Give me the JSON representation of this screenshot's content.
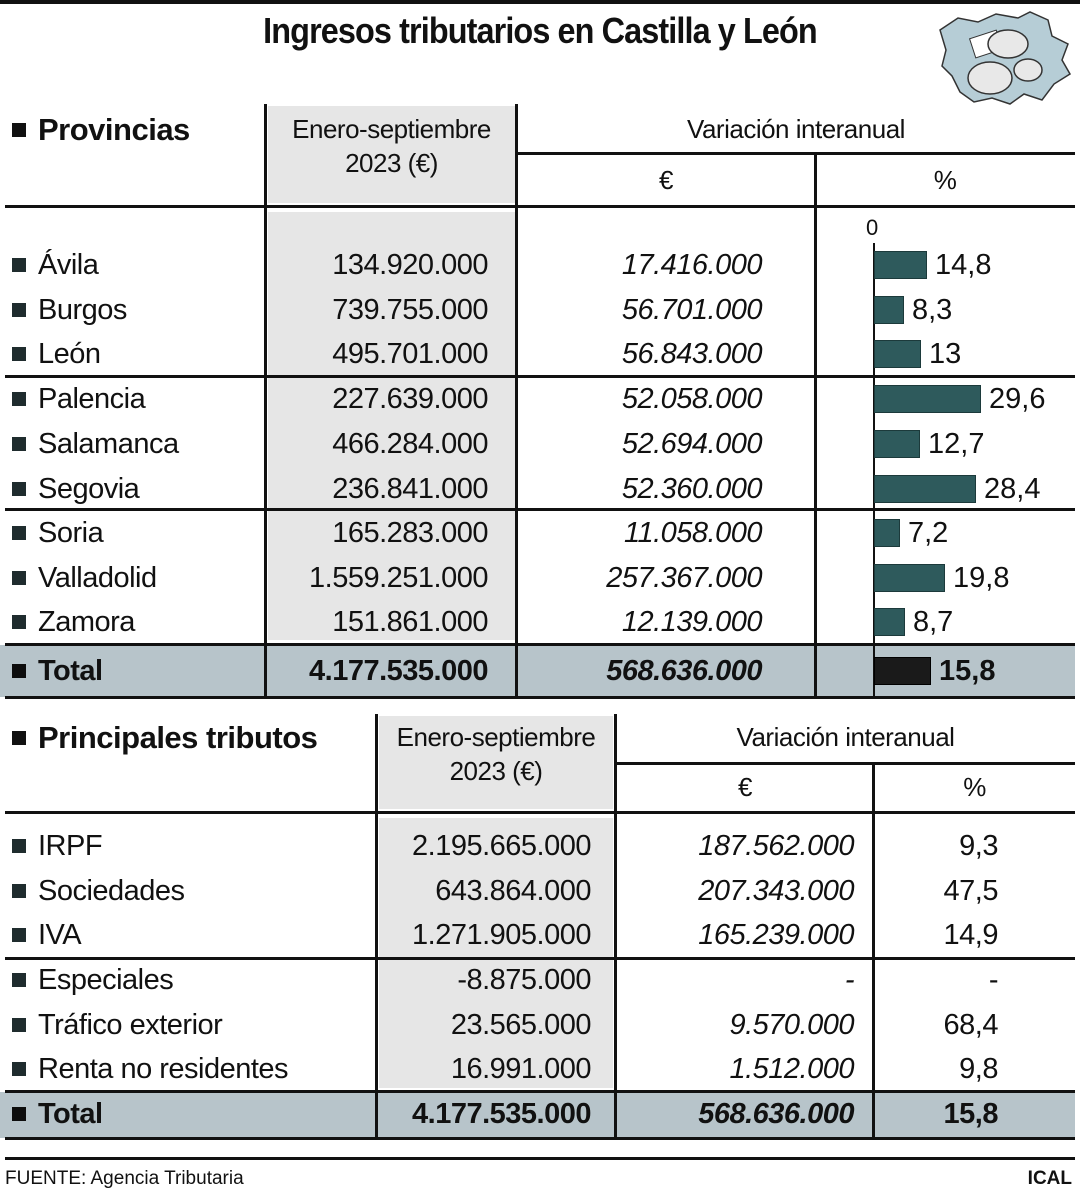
{
  "title": "Ingresos tributarios en Castilla y León",
  "icons": {
    "map": "castilla-leon-map-coins-icon",
    "bullet": "square-bullet-icon"
  },
  "colors": {
    "bar": "#2e5a5c",
    "bar_total": "#1a1a1a",
    "total_band": "#b7c4ca",
    "gray_column": "#e6e6e6"
  },
  "provincias": {
    "section_title": "Provincias",
    "col_period": "Enero-septiembre",
    "col_period_2": "2023 (€)",
    "col_variation": "Variación interanual",
    "col_eur": "€",
    "col_pct": "%",
    "axis_zero": "0",
    "rows": [
      {
        "name": "Ávila",
        "amount": "134.920.000",
        "var_eur": "17.416.000",
        "var_pct": "14,8"
      },
      {
        "name": "Burgos",
        "amount": "739.755.000",
        "var_eur": "56.701.000",
        "var_pct": "8,3"
      },
      {
        "name": "León",
        "amount": "495.701.000",
        "var_eur": "56.843.000",
        "var_pct": "13"
      },
      {
        "name": "Palencia",
        "amount": "227.639.000",
        "var_eur": "52.058.000",
        "var_pct": "29,6"
      },
      {
        "name": "Salamanca",
        "amount": "466.284.000",
        "var_eur": "52.694.000",
        "var_pct": "12,7"
      },
      {
        "name": "Segovia",
        "amount": "236.841.000",
        "var_eur": "52.360.000",
        "var_pct": "28,4"
      },
      {
        "name": "Soria",
        "amount": "165.283.000",
        "var_eur": "11.058.000",
        "var_pct": "7,2"
      },
      {
        "name": "Valladolid",
        "amount": "1.559.251.000",
        "var_eur": "257.367.000",
        "var_pct": "19,8"
      },
      {
        "name": "Zamora",
        "amount": "151.861.000",
        "var_eur": "12.139.000",
        "var_pct": "8,7"
      }
    ],
    "total": {
      "name": "Total",
      "amount": "4.177.535.000",
      "var_eur": "568.636.000",
      "var_pct": "15,8"
    }
  },
  "tributos": {
    "section_title": "Principales tributos",
    "col_period": "Enero-septiembre",
    "col_period_2": "2023 (€)",
    "col_variation": "Variación interanual",
    "col_eur": "€",
    "col_pct": "%",
    "rows": [
      {
        "name": "IRPF",
        "amount": "2.195.665.000",
        "var_eur": "187.562.000",
        "var_pct": "9,3"
      },
      {
        "name": "Sociedades",
        "amount": "643.864.000",
        "var_eur": "207.343.000",
        "var_pct": "47,5"
      },
      {
        "name": "IVA",
        "amount": "1.271.905.000",
        "var_eur": "165.239.000",
        "var_pct": "14,9"
      },
      {
        "name": "Especiales",
        "amount": "-8.875.000",
        "var_eur": "-",
        "var_pct": "-"
      },
      {
        "name": "Tráfico exterior",
        "amount": "23.565.000",
        "var_eur": "9.570.000",
        "var_pct": "68,4"
      },
      {
        "name": "Renta no residentes",
        "amount": "16.991.000",
        "var_eur": "1.512.000",
        "var_pct": "9,8"
      }
    ],
    "total": {
      "name": "Total",
      "amount": "4.177.535.000",
      "var_eur": "568.636.000",
      "var_pct": "15,8"
    }
  },
  "footer": {
    "source": "FUENTE: Agencia Tributaria",
    "credit": "ICAL"
  },
  "chart_data": [
    {
      "type": "bar",
      "title": "Ingresos tributarios en Castilla y León — Variación interanual (%) por provincia",
      "orientation": "horizontal",
      "categories": [
        "Ávila",
        "Burgos",
        "León",
        "Palencia",
        "Salamanca",
        "Segovia",
        "Soria",
        "Valladolid",
        "Zamora",
        "Total"
      ],
      "values": [
        14.8,
        8.3,
        13,
        29.6,
        12.7,
        28.4,
        7.2,
        19.8,
        8.7,
        15.8
      ],
      "xlabel": "%",
      "ylabel": "",
      "xlim": [
        0,
        30
      ],
      "axis_ticks": [
        "0"
      ],
      "grid": false,
      "data_labels": true
    },
    {
      "type": "table",
      "title": "Provincias",
      "columns": [
        "Provincia",
        "Enero-septiembre 2023 (€)",
        "Variación interanual €",
        "Variación interanual %"
      ],
      "rows": [
        [
          "Ávila",
          134920000,
          17416000,
          14.8
        ],
        [
          "Burgos",
          739755000,
          56701000,
          8.3
        ],
        [
          "León",
          495701000,
          56843000,
          13
        ],
        [
          "Palencia",
          227639000,
          52058000,
          29.6
        ],
        [
          "Salamanca",
          466284000,
          52694000,
          12.7
        ],
        [
          "Segovia",
          236841000,
          52360000,
          28.4
        ],
        [
          "Soria",
          165283000,
          11058000,
          7.2
        ],
        [
          "Valladolid",
          1559251000,
          257367000,
          19.8
        ],
        [
          "Zamora",
          151861000,
          12139000,
          8.7
        ],
        [
          "Total",
          4177535000,
          568636000,
          15.8
        ]
      ]
    },
    {
      "type": "table",
      "title": "Principales tributos",
      "columns": [
        "Tributo",
        "Enero-septiembre 2023 (€)",
        "Variación interanual €",
        "Variación interanual %"
      ],
      "rows": [
        [
          "IRPF",
          2195665000,
          187562000,
          9.3
        ],
        [
          "Sociedades",
          643864000,
          207343000,
          47.5
        ],
        [
          "IVA",
          1271905000,
          165239000,
          14.9
        ],
        [
          "Especiales",
          -8875000,
          null,
          null
        ],
        [
          "Tráfico exterior",
          23565000,
          9570000,
          68.4
        ],
        [
          "Renta no residentes",
          16991000,
          1512000,
          9.8
        ],
        [
          "Total",
          4177535000,
          568636000,
          15.8
        ]
      ]
    }
  ]
}
